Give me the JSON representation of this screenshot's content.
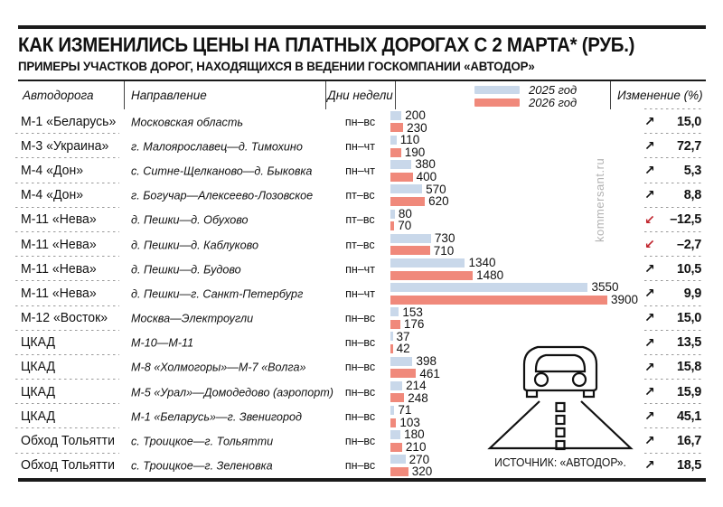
{
  "header": {
    "title": "КАК ИЗМЕНИЛИСЬ ЦЕНЫ НА ПЛАТНЫХ ДОРОГАХ С 2 МАРТА* (РУБ.)",
    "subtitle": "ПРИМЕРЫ УЧАСТКОВ ДОРОГ, НАХОДЯЩИХСЯ В ВЕДЕНИИ ГОСКОМПАНИИ «АВТОДОР»"
  },
  "table": {
    "columns": {
      "road": "Автодорога",
      "direction": "Направление",
      "days": "Дни недели",
      "change": "Изменение (%)"
    },
    "legend": [
      {
        "label": "2025 год",
        "color": "#c9d8ea"
      },
      {
        "label": "2026 год",
        "color": "#f0897b"
      }
    ]
  },
  "chart_data": {
    "type": "bar",
    "orientation": "horizontal",
    "series_names": [
      "2025 год",
      "2026 год"
    ],
    "value_unit": "руб.",
    "max_value": 3900,
    "rows": [
      {
        "road": "М-1 «Беларусь»",
        "direction": "Московская область",
        "days": "пн–вс",
        "v2025": 200,
        "v2026": 230,
        "change": "15,0",
        "trend": "up"
      },
      {
        "road": "М-3 «Украина»",
        "direction": "г. Малоярославец—д. Тимохино",
        "days": "пн–чт",
        "v2025": 110,
        "v2026": 190,
        "change": "72,7",
        "trend": "up"
      },
      {
        "road": "М-4 «Дон»",
        "direction": "с. Ситне-Щелканово—д. Быковка",
        "days": "пн–чт",
        "v2025": 380,
        "v2026": 400,
        "change": "5,3",
        "trend": "up"
      },
      {
        "road": "М-4 «Дон»",
        "direction": "г. Богучар—Алексеево-Лозовское",
        "days": "пт–вс",
        "v2025": 570,
        "v2026": 620,
        "change": "8,8",
        "trend": "up"
      },
      {
        "road": "М-11 «Нева»",
        "direction": "д. Пешки—д. Обухово",
        "days": "пт–вс",
        "v2025": 80,
        "v2026": 70,
        "change": "–12,5",
        "trend": "down"
      },
      {
        "road": "М-11 «Нева»",
        "direction": "д. Пешки—д. Каблуково",
        "days": "пт–вс",
        "v2025": 730,
        "v2026": 710,
        "change": "–2,7",
        "trend": "down"
      },
      {
        "road": "М-11 «Нева»",
        "direction": "д. Пешки—д. Будово",
        "days": "пн–чт",
        "v2025": 1340,
        "v2026": 1480,
        "change": "10,5",
        "trend": "up"
      },
      {
        "road": "М-11 «Нева»",
        "direction": "д. Пешки—г. Санкт-Петербург",
        "days": "пн–чт",
        "v2025": 3550,
        "v2026": 3900,
        "change": "9,9",
        "trend": "up"
      },
      {
        "road": "М-12 «Восток»",
        "direction": "Москва—Электроугли",
        "days": "пн–вс",
        "v2025": 153,
        "v2026": 176,
        "change": "15,0",
        "trend": "up"
      },
      {
        "road": "ЦКАД",
        "direction": "М-10—М-11",
        "days": "пн–вс",
        "v2025": 37,
        "v2026": 42,
        "change": "13,5",
        "trend": "up"
      },
      {
        "road": "ЦКАД",
        "direction": "М-8 «Холмогоры»—М-7 «Волга»",
        "days": "пн–вс",
        "v2025": 398,
        "v2026": 461,
        "change": "15,8",
        "trend": "up"
      },
      {
        "road": "ЦКАД",
        "direction": "М-5 «Урал»—Домодедово (аэропорт)",
        "days": "пн–вс",
        "v2025": 214,
        "v2026": 248,
        "change": "15,9",
        "trend": "up"
      },
      {
        "road": "ЦКАД",
        "direction": "М-1 «Беларусь»—г. Звенигород",
        "days": "пн–вс",
        "v2025": 71,
        "v2026": 103,
        "change": "45,1",
        "trend": "up"
      },
      {
        "road": "Обход Тольятти",
        "direction": "с. Троицкое—г. Тольятти",
        "days": "пн–вс",
        "v2025": 180,
        "v2026": 210,
        "change": "16,7",
        "trend": "up"
      },
      {
        "road": "Обход Тольятти",
        "direction": "с. Троицкое—г. Зеленовка",
        "days": "пн–вс",
        "v2025": 270,
        "v2026": 320,
        "change": "18,5",
        "trend": "up"
      }
    ]
  },
  "icons": {
    "trend_up": "↗",
    "trend_down": "↙"
  },
  "colors": {
    "bar_2025": "#c9d8ea",
    "bar_2026": "#f0897b",
    "trend_up": "#111111",
    "trend_down": "#c0232b",
    "rule": "#1a1a1a",
    "watermark": "#b3b3b3"
  },
  "watermark": "kommersant.ru",
  "source": "ИСТОЧНИК: «АВТОДОР»."
}
